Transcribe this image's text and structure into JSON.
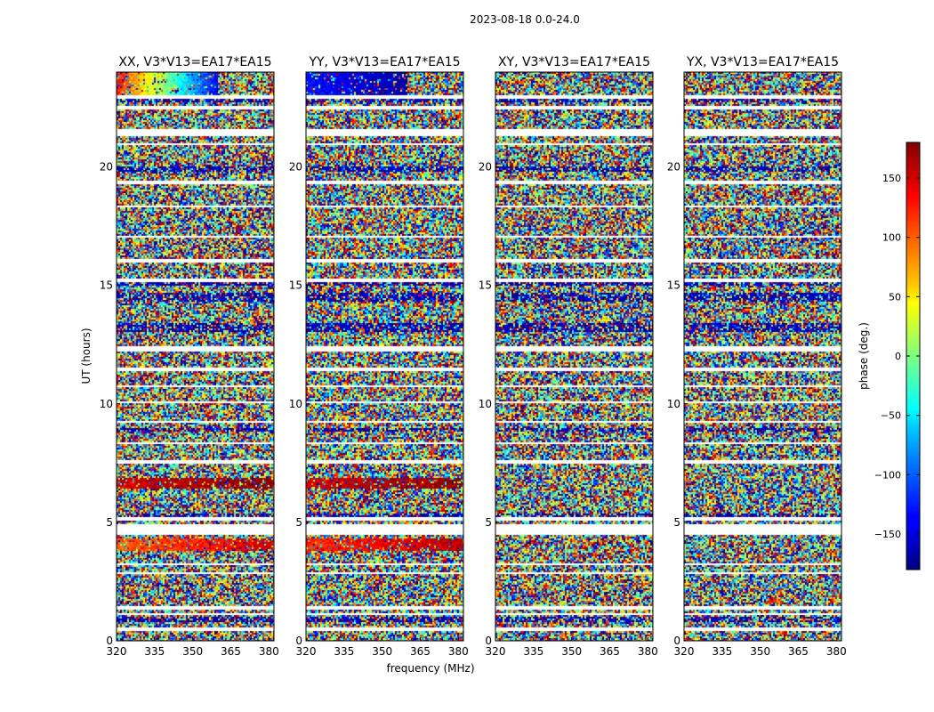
{
  "figure": {
    "suptitle": "2023-08-18 0.0-24.0"
  },
  "chart_data": {
    "type": "heatmap",
    "xlabel": "frequency (MHz)",
    "ylabel": "UT (hours)",
    "xlim": [
      320,
      382
    ],
    "ylim": [
      0,
      24
    ],
    "xticks": [
      320,
      335,
      350,
      365,
      380
    ],
    "yticks": [
      0,
      5,
      10,
      15,
      20
    ],
    "panels": [
      {
        "title": "XX, V3*V13=EA17*EA15",
        "pol": "XX"
      },
      {
        "title": "YY, V3*V13=EA17*EA15",
        "pol": "YY"
      },
      {
        "title": "XY, V3*V13=EA17*EA15",
        "pol": "XY"
      },
      {
        "title": "YX, V3*V13=EA17*EA15",
        "pol": "YX"
      }
    ],
    "colorbar": {
      "label": "phase (deg.)",
      "range": [
        -180,
        180
      ],
      "ticks": [
        150,
        100,
        50,
        0,
        -50,
        -100,
        -150
      ],
      "colormap": "jet"
    },
    "flagged_hours": [
      [
        0.45,
        0.6
      ],
      [
        1.1,
        1.2
      ],
      [
        1.3,
        1.45
      ],
      [
        2.8,
        2.9
      ],
      [
        3.2,
        3.3
      ],
      [
        4.5,
        4.9
      ],
      [
        5.1,
        5.2
      ],
      [
        7.5,
        7.6
      ],
      [
        8.3,
        8.4
      ],
      [
        9.2,
        9.3
      ],
      [
        10.0,
        10.1
      ],
      [
        10.7,
        10.8
      ],
      [
        11.4,
        11.5
      ],
      [
        12.2,
        12.4
      ],
      [
        15.1,
        15.3
      ],
      [
        16.0,
        16.1
      ],
      [
        17.0,
        17.1
      ],
      [
        18.3,
        18.4
      ],
      [
        19.3,
        19.45
      ],
      [
        20.9,
        21.0
      ],
      [
        21.3,
        21.6
      ],
      [
        22.4,
        22.6
      ],
      [
        22.9,
        23.0
      ]
    ],
    "dense_band_hours": [
      [
        0.8,
        1.0
      ],
      [
        5.2,
        5.4
      ],
      [
        8.8,
        9.0
      ],
      [
        13.0,
        13.4
      ],
      [
        14.3,
        14.7
      ],
      [
        15.0,
        15.1
      ],
      [
        19.8,
        20.0
      ],
      [
        22.7,
        22.9
      ]
    ],
    "coherent_regions": [
      {
        "pol": "XX",
        "t0": 23.0,
        "t1": 24.0,
        "f0": 320,
        "f1": 360,
        "phase_start": 130,
        "phase_end": -140
      },
      {
        "pol": "XX",
        "t0": 6.4,
        "t1": 6.9,
        "f0": 320,
        "f1": 382,
        "phase_start": 150,
        "phase_end": 175
      },
      {
        "pol": "XX",
        "t0": 3.8,
        "t1": 4.3,
        "f0": 320,
        "f1": 382,
        "phase_start": 100,
        "phase_end": 150
      },
      {
        "pol": "YY",
        "t0": 23.0,
        "t1": 24.0,
        "f0": 320,
        "f1": 360,
        "phase_start": -130,
        "phase_end": -165
      },
      {
        "pol": "YY",
        "t0": 6.4,
        "t1": 6.9,
        "f0": 320,
        "f1": 382,
        "phase_start": 150,
        "phase_end": 175
      },
      {
        "pol": "YY",
        "t0": 3.8,
        "t1": 4.3,
        "f0": 320,
        "f1": 382,
        "phase_start": 120,
        "phase_end": 160
      }
    ],
    "colors": {
      "flagged": "#ffffff",
      "text": "#000000"
    }
  }
}
